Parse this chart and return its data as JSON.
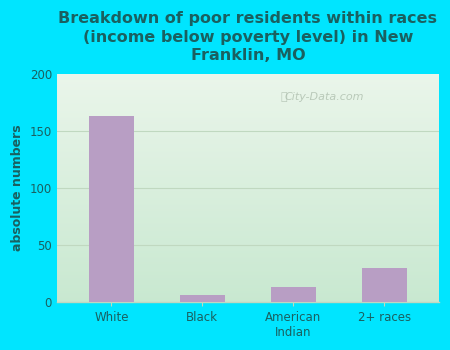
{
  "categories": [
    "White",
    "Black",
    "American\nIndian",
    "2+ races"
  ],
  "values": [
    163,
    6,
    13,
    30
  ],
  "bar_color": "#b89ec4",
  "title": "Breakdown of poor residents within races\n(income below poverty level) in New\nFranklin, MO",
  "ylabel": "absolute numbers",
  "ylim": [
    0,
    200
  ],
  "yticks": [
    0,
    50,
    100,
    150,
    200
  ],
  "bg_outer": "#00e5ff",
  "bg_plot_top": "#eaf5ea",
  "bg_plot_bottom": "#c8e8d0",
  "text_color": "#1a6060",
  "grid_color": "#c0d8c0",
  "watermark": "City-Data.com",
  "title_fontsize": 11.5,
  "ylabel_fontsize": 9,
  "tick_fontsize": 8.5,
  "bar_width": 0.5
}
